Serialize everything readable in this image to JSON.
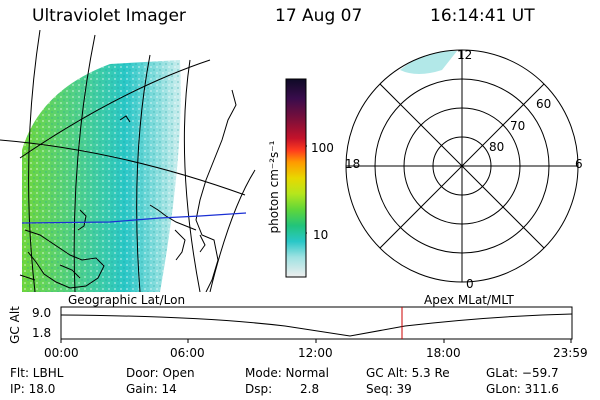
{
  "header": {
    "instrument": "Ultraviolet Imager",
    "date": "17 Aug 07",
    "time": "16:14:41 UT"
  },
  "colorbar": {
    "unit_label": "photon cm⁻²s⁻¹",
    "ticks": [
      "100",
      "10"
    ],
    "colors": [
      "#1a0a2e",
      "#3a0c4c",
      "#7a0f3a",
      "#b3122a",
      "#e61e1e",
      "#ff6a00",
      "#ffa500",
      "#e8d800",
      "#b5e61d",
      "#6fd63a",
      "#22c47a",
      "#29c7c7",
      "#7fdcdc",
      "#cfeeee",
      "#f0f0f0"
    ]
  },
  "polar_plot": {
    "mlt_labels": {
      "top": "12",
      "left": "18",
      "right": "6",
      "bottom": "0"
    },
    "lat_labels": [
      "60",
      "70",
      "80"
    ]
  },
  "timeline": {
    "left_label": "Geographic Lat/Lon",
    "right_label": "Apex MLat/MLT",
    "axis_title": "GC Alt",
    "y_ticks": [
      "9.0",
      "1.8"
    ],
    "x_ticks": [
      "00:00",
      "06:00",
      "12:00",
      "18:00",
      "23:59"
    ],
    "marker_color": "#cc0000"
  },
  "info": {
    "row1": {
      "flt": "Flt: LBHL",
      "door": "Door: Open",
      "mode": "Mode: Normal",
      "gc_alt": "GC Alt: 5.3 Re",
      "glat": "GLat: −59.7"
    },
    "row2": {
      "ip": "IP: 18.0",
      "gain": "Gain: 14",
      "dsp_label": "Dsp:",
      "dsp_value": "2.8",
      "seq": "Seq: 39",
      "glon": "GLon: 311.6"
    }
  }
}
